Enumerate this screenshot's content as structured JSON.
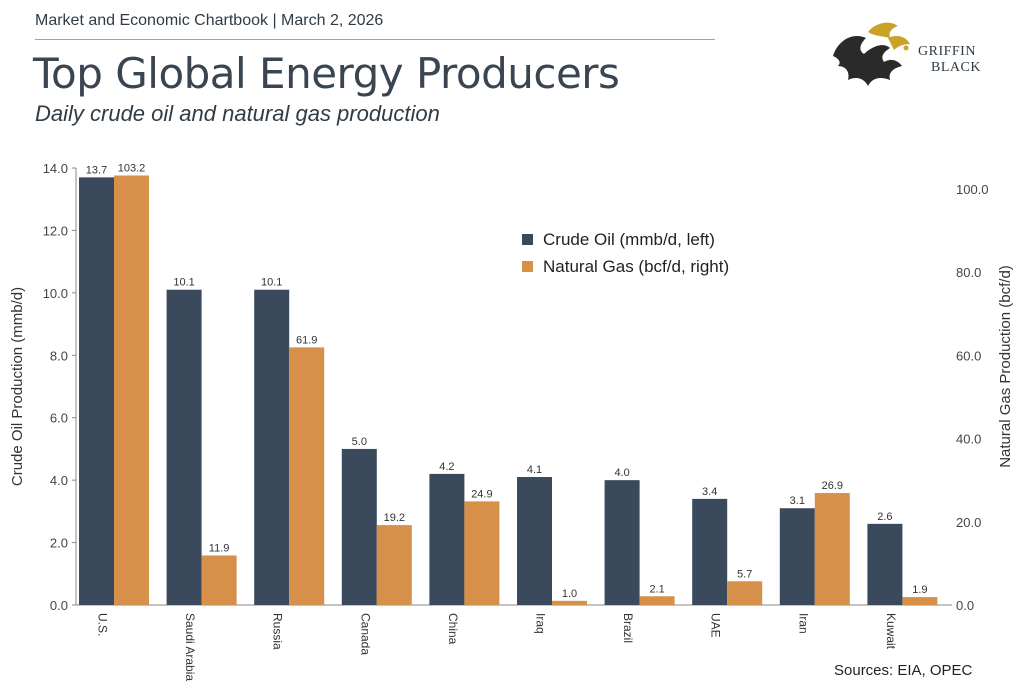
{
  "header": {
    "label": "Market and Economic Chartbook | March 2, 2026",
    "title": "Top Global Energy Producers",
    "subtitle": "Daily crude oil and natural gas production"
  },
  "logo": {
    "line1": "GRIFFIN",
    "line2": "BLACK"
  },
  "source": "Sources: EIA, OPEC",
  "colors": {
    "oil": "#3a4a5c",
    "gas": "#d6904a"
  },
  "chart_data": {
    "type": "bar",
    "categories": [
      "U.S.",
      "Saudi Arabia",
      "Russia",
      "Canada",
      "China",
      "Iraq",
      "Brazil",
      "UAE",
      "Iran",
      "Kuwait"
    ],
    "series": [
      {
        "name": "Crude Oil (mmb/d, left)",
        "axis": "left",
        "values": [
          13.7,
          10.1,
          10.1,
          5.0,
          4.2,
          4.1,
          4.0,
          3.4,
          3.1,
          2.6
        ],
        "labels": [
          "13.7",
          "10.1",
          "10.1",
          "5.0",
          "4.2",
          "4.1",
          "4.0",
          "3.4",
          "3.1",
          "2.6"
        ]
      },
      {
        "name": "Natural Gas (bcf/d, right)",
        "axis": "right",
        "values": [
          103.2,
          11.9,
          61.9,
          19.2,
          24.9,
          1.0,
          2.1,
          5.7,
          26.9,
          1.9
        ],
        "labels": [
          "103.2",
          "11.9",
          "61.9",
          "19.2",
          "24.9",
          "1.0",
          "2.1",
          "5.7",
          "26.9",
          "1.9"
        ]
      }
    ],
    "ylabel_left": "Crude Oil Production (mmb/d)",
    "ylabel_right": "Natural Gas Production (bcf/d)",
    "ylim_left": [
      0,
      14
    ],
    "ylim_right": [
      0,
      105
    ],
    "yticks_left": [
      "0.0",
      "2.0",
      "4.0",
      "6.0",
      "8.0",
      "10.0",
      "12.0",
      "14.0"
    ],
    "yticks_right": [
      "0.0",
      "20.0",
      "40.0",
      "60.0",
      "80.0",
      "100.0"
    ],
    "legend_position": "upper-right",
    "grid": false
  }
}
